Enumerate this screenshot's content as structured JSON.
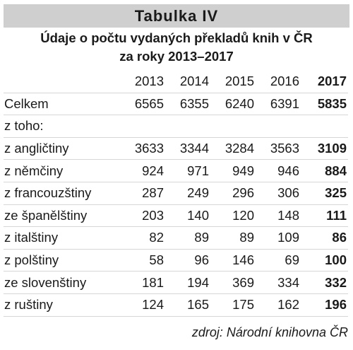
{
  "title": "Tabulka IV",
  "subtitle_line1": "Údaje o počtu vydaných překladů knih v ČR",
  "subtitle_line2": "za roky 2013–2017",
  "years": [
    "2013",
    "2014",
    "2015",
    "2016",
    "2017"
  ],
  "rows": [
    {
      "label": "Celkem",
      "values": [
        "6565",
        "6355",
        "6240",
        "6391",
        "5835"
      ]
    },
    {
      "label": "z toho:",
      "values": [
        "",
        "",
        "",
        "",
        ""
      ]
    },
    {
      "label": "z angličtiny",
      "values": [
        "3633",
        "3344",
        "3284",
        "3563",
        "3109"
      ]
    },
    {
      "label": "z němčiny",
      "values": [
        "924",
        "971",
        "949",
        "946",
        "884"
      ]
    },
    {
      "label": "z francouzštiny",
      "values": [
        "287",
        "249",
        "296",
        "306",
        "325"
      ]
    },
    {
      "label": "ze španělštiny",
      "values": [
        "203",
        "140",
        "120",
        "148",
        "111"
      ]
    },
    {
      "label": "z italštiny",
      "values": [
        "82",
        "89",
        "89",
        "109",
        "86"
      ]
    },
    {
      "label": "z polštiny",
      "values": [
        "58",
        "96",
        "146",
        "69",
        "100"
      ]
    },
    {
      "label": "ze slovenštiny",
      "values": [
        "181",
        "194",
        "369",
        "334",
        "332"
      ]
    },
    {
      "label": "z ruštiny",
      "values": [
        "124",
        "165",
        "175",
        "162",
        "196"
      ]
    }
  ],
  "source": "zdroj: Národní knihovna ČR"
}
